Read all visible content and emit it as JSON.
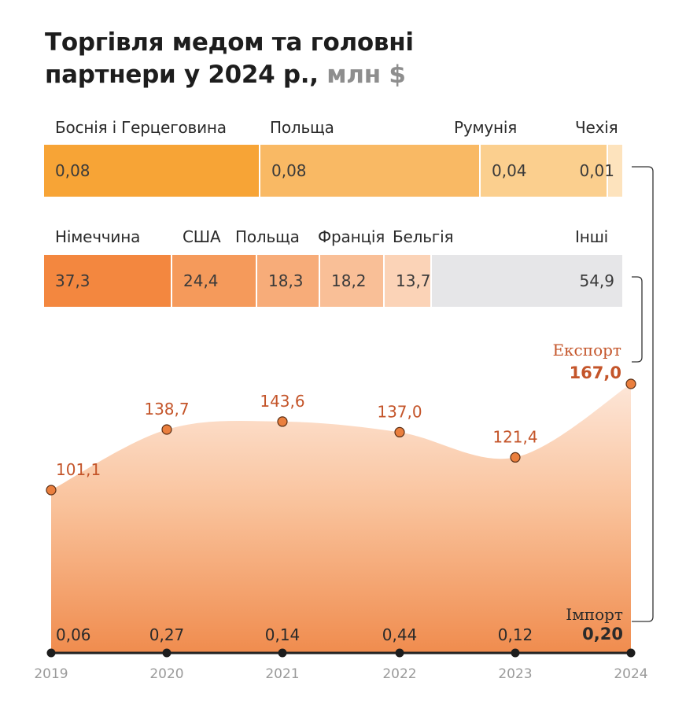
{
  "title": {
    "line1": "Торгівля медом та головні",
    "line2": "партнери у 2024 р.,",
    "unit": "млн $"
  },
  "chart_data": [
    {
      "type": "bar",
      "stacked": true,
      "orientation": "horizontal",
      "group": "Імпорт 2024",
      "categories": [
        "Боснія і Герцеговина",
        "Польща",
        "Румунія",
        "Чехія"
      ],
      "labels": [
        "0,08",
        "0,08",
        "0,04",
        "0,01"
      ],
      "values": [
        0.08,
        0.08,
        0.04,
        0.01
      ],
      "colors": [
        "#f7a436",
        "#f9b964",
        "#fbcf8e",
        "#fde3bd"
      ]
    },
    {
      "type": "bar",
      "stacked": true,
      "orientation": "horizontal",
      "group": "Експорт 2024",
      "categories": [
        "Німеччина",
        "США",
        "Польща",
        "Франція",
        "Бельгія",
        "Інші"
      ],
      "labels": [
        "37,3",
        "24,4",
        "18,3",
        "18,2",
        "13,7",
        "54,9"
      ],
      "values": [
        37.3,
        24.4,
        18.3,
        18.2,
        13.7,
        54.9
      ],
      "colors": [
        "#f3873f",
        "#f59a5b",
        "#f7ac79",
        "#f9bf97",
        "#fbd3b7",
        "#e6e6e8"
      ]
    },
    {
      "type": "area",
      "x": [
        "2019",
        "2020",
        "2021",
        "2022",
        "2023",
        "2024"
      ],
      "series": [
        {
          "name": "Експорт",
          "values": [
            101.1,
            138.7,
            143.6,
            137.0,
            121.4,
            167.0
          ],
          "labels": [
            "101,1",
            "138,7",
            "143,6",
            "137,0",
            "121,4",
            "167,0"
          ],
          "color": "#f08a4b"
        },
        {
          "name": "Імпорт",
          "values": [
            0.06,
            0.27,
            0.14,
            0.44,
            0.12,
            0.2
          ],
          "labels": [
            "0,06",
            "0,27",
            "0,14",
            "0,44",
            "0,12",
            "0,20"
          ],
          "color": "#222222"
        }
      ],
      "ylim": [
        0,
        167.0
      ]
    }
  ]
}
